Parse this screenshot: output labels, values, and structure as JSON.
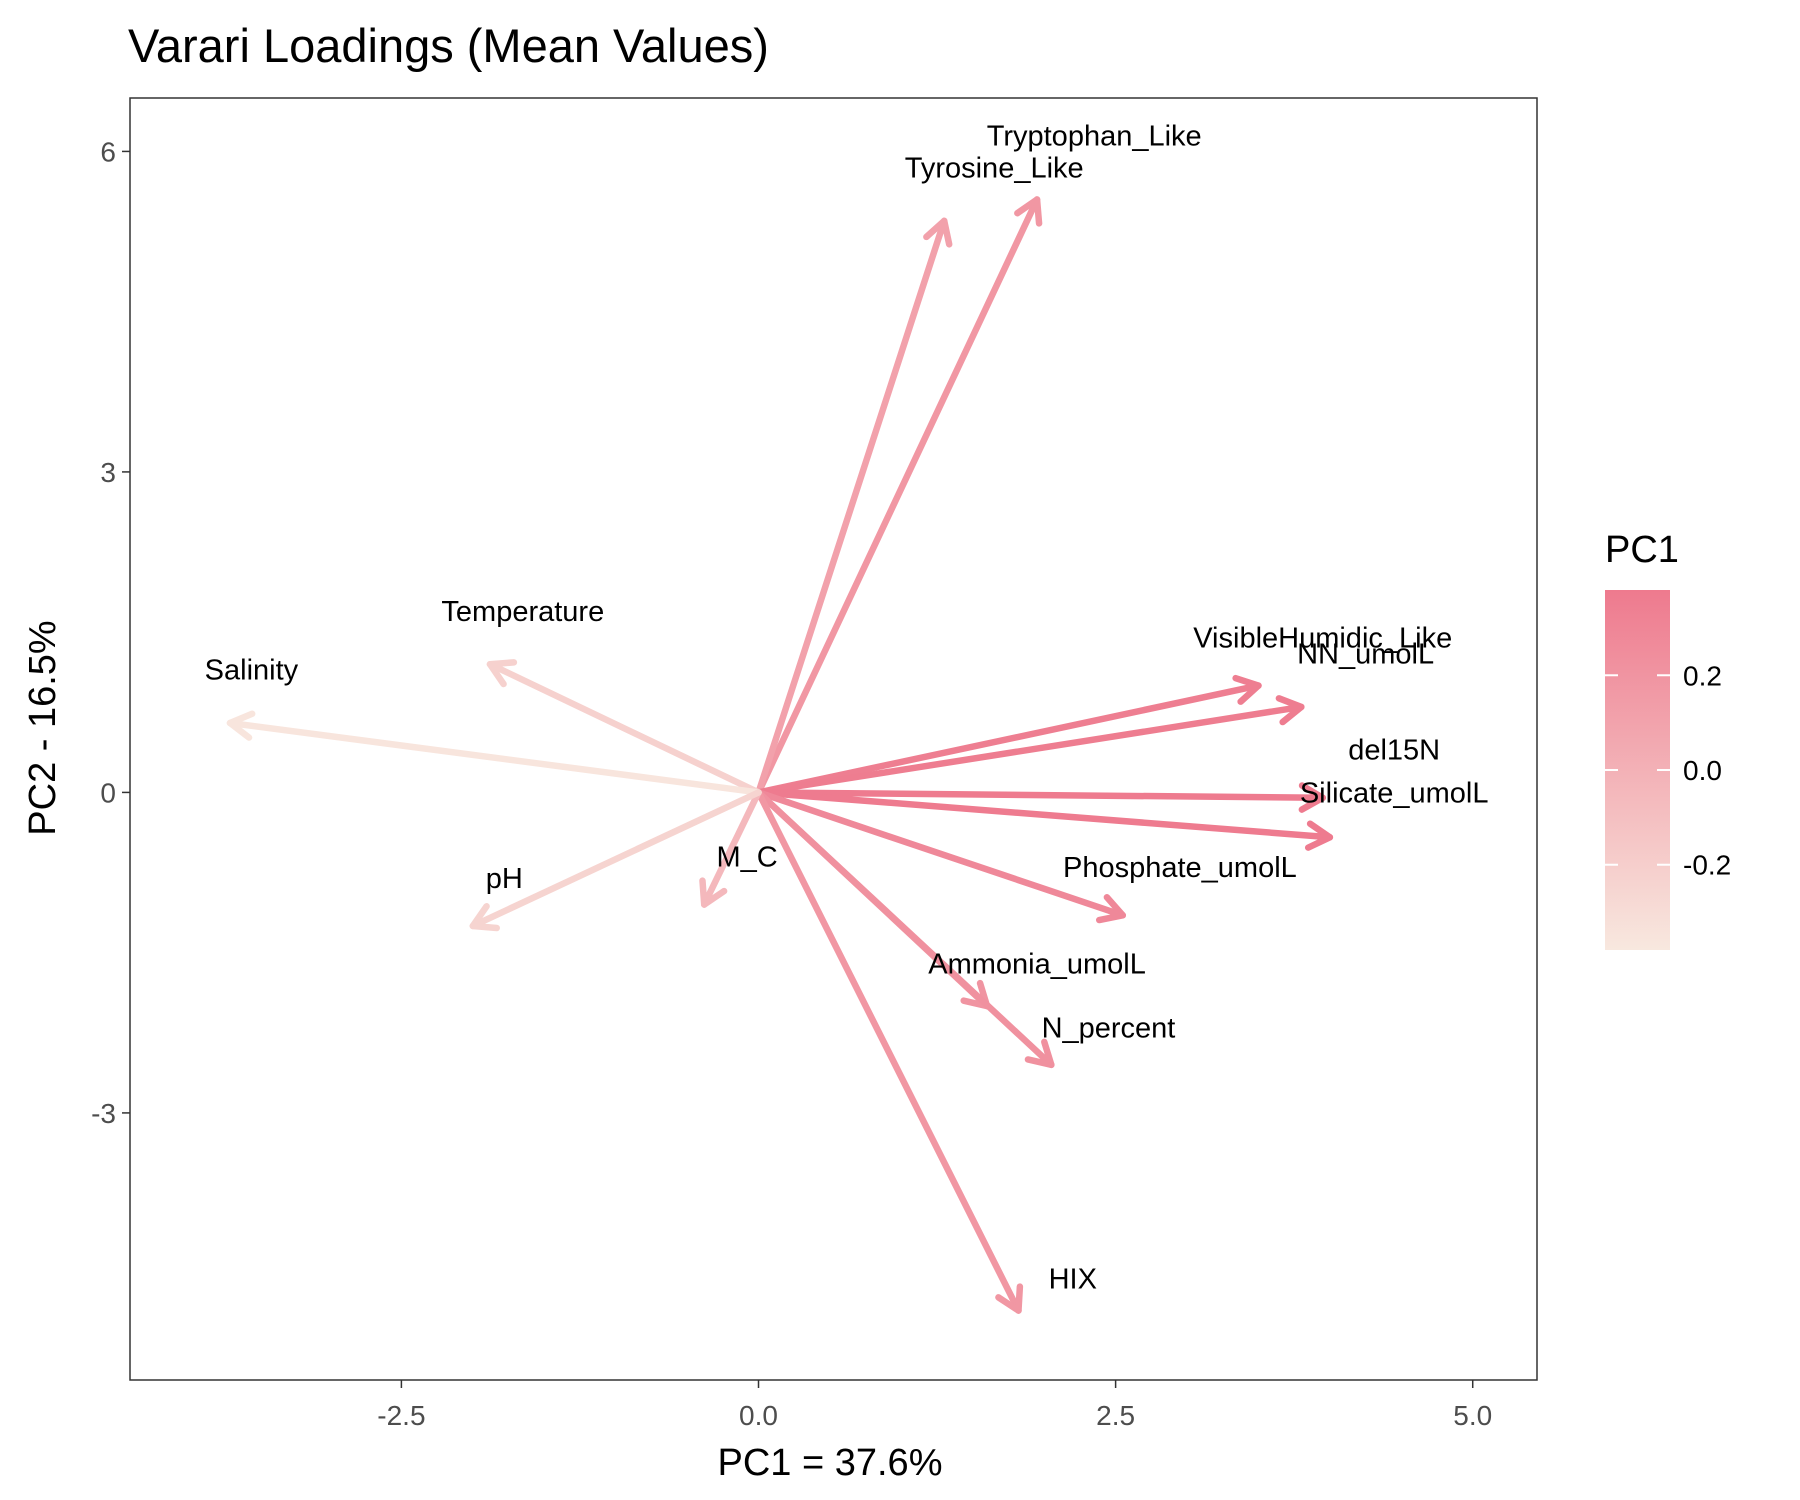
{
  "chart_data": {
    "type": "biplot",
    "title": "Varari Loadings (Mean Values)",
    "xlabel": "PC1 = 37.6%",
    "ylabel": "PC2 - 16.5%",
    "xlim": [
      -4.4,
      5.45
    ],
    "ylim": [
      -5.5,
      6.5
    ],
    "xticks": [
      -2.5,
      0.0,
      2.5,
      5.0
    ],
    "xtick_labels": [
      "-2.5",
      "0.0",
      "2.5",
      "5.0"
    ],
    "yticks": [
      -3,
      0,
      3,
      6
    ],
    "ytick_labels": [
      "-3",
      "0",
      "3",
      "6"
    ],
    "grid": false,
    "color_scale": {
      "title": "PC1",
      "low_color": "#f8e8df",
      "high_color": "#ee7a8e",
      "range": [
        -0.38,
        0.38
      ],
      "ticks": [
        0.2,
        0.0,
        -0.2
      ],
      "tick_labels": [
        "0.2",
        "0.0",
        "-0.2"
      ],
      "legend_placement": "right"
    },
    "vectors": [
      {
        "label": "Tryptophan_Like",
        "x": 1.95,
        "y": 5.55,
        "pc1": 0.18,
        "label_x": 2.35,
        "label_y": 6.15
      },
      {
        "label": "Tyrosine_Like",
        "x": 1.3,
        "y": 5.35,
        "pc1": 0.11,
        "label_x": 1.65,
        "label_y": 5.85
      },
      {
        "label": "VisibleHumidic_Like",
        "x": 3.5,
        "y": 1.0,
        "pc1": 0.35,
        "label_x": 3.95,
        "label_y": 1.45
      },
      {
        "label": "NN_umolL",
        "x": 3.8,
        "y": 0.8,
        "pc1": 0.36,
        "label_x": 4.25,
        "label_y": 1.3
      },
      {
        "label": "del15N",
        "x": 3.95,
        "y": -0.05,
        "pc1": 0.37,
        "label_x": 4.45,
        "label_y": 0.4
      },
      {
        "label": "Silicate_umolL",
        "x": 4.0,
        "y": -0.42,
        "pc1": 0.37,
        "label_x": 4.45,
        "label_y": 0.0
      },
      {
        "label": "Phosphate_umolL",
        "x": 2.55,
        "y": -1.15,
        "pc1": 0.28,
        "label_x": 2.95,
        "label_y": -0.7
      },
      {
        "label": "Ammonia_umolL",
        "x": 1.6,
        "y": -2.0,
        "pc1": 0.2,
        "label_x": 1.95,
        "label_y": -1.6
      },
      {
        "label": "N_percent",
        "x": 2.05,
        "y": -2.55,
        "pc1": 0.22,
        "label_x": 2.45,
        "label_y": -2.2
      },
      {
        "label": "HIX",
        "x": 1.82,
        "y": -4.85,
        "pc1": 0.18,
        "label_x": 2.2,
        "label_y": -4.55
      },
      {
        "label": "M_C",
        "x": -0.38,
        "y": -1.05,
        "pc1": -0.05,
        "label_x": -0.08,
        "label_y": -0.6
      },
      {
        "label": "Temperature",
        "x": -1.88,
        "y": 1.2,
        "pc1": -0.22,
        "label_x": -1.65,
        "label_y": 1.7
      },
      {
        "label": "Salinity",
        "x": -3.7,
        "y": 0.65,
        "pc1": -0.36,
        "label_x": -3.55,
        "label_y": 1.15
      },
      {
        "label": "pH",
        "x": -2.0,
        "y": -1.25,
        "pc1": -0.24,
        "label_x": -1.78,
        "label_y": -0.8
      }
    ]
  }
}
